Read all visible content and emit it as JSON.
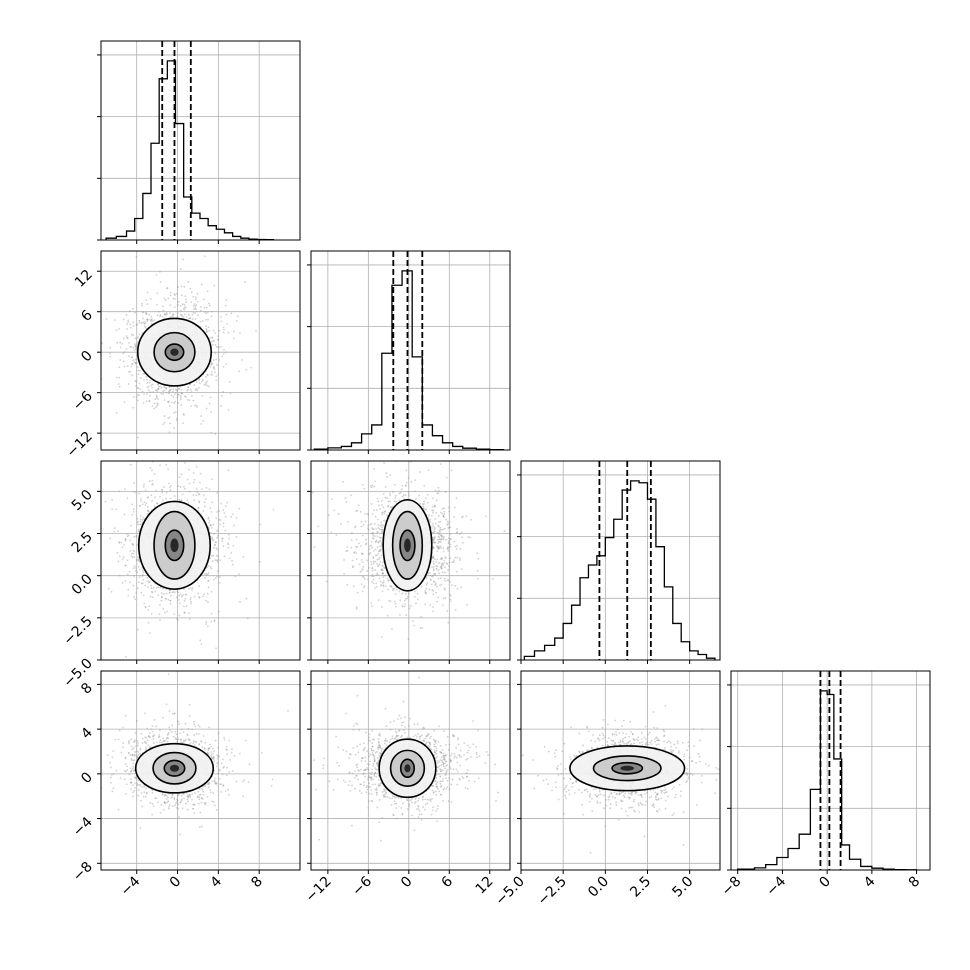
{
  "figure": {
    "type": "corner-plot",
    "n_parameters": 4
  },
  "axes": {
    "p0": {
      "ticks": [
        -4,
        0,
        4,
        8
      ],
      "tick_labels": [
        "−4",
        "0",
        "4",
        "8"
      ],
      "range": [
        -7.5,
        12
      ]
    },
    "p1": {
      "ticks": [
        -12,
        -6,
        0,
        6,
        12
      ],
      "tick_labels": [
        "−12",
        "−6",
        "0",
        "6",
        "12"
      ],
      "range": [
        -14.5,
        15
      ]
    },
    "p2": {
      "ticks": [
        -5.0,
        -2.5,
        0.0,
        2.5,
        5.0
      ],
      "tick_labels": [
        "−5.0",
        "−2.5",
        "0.0",
        "2.5",
        "5.0"
      ],
      "range": [
        -5.0,
        6.8
      ]
    },
    "p3": {
      "ticks": [
        -8,
        -4,
        0,
        4,
        8
      ],
      "tick_labels": [
        "−8",
        "−4",
        "0",
        "4",
        "8"
      ],
      "range": [
        -8.6,
        9.2
      ]
    }
  },
  "colors": {
    "line": "#000000",
    "grid": "#b0b0b0",
    "scatter": "#9a9a9a"
  },
  "chart_data": {
    "type": "corner",
    "grid": true,
    "histograms": [
      {
        "parameter": "p0",
        "quantiles": [
          -1.5,
          -0.3,
          1.3
        ],
        "bin_edges": [
          -7.0,
          -6.0,
          -5.0,
          -4.2,
          -3.4,
          -2.6,
          -1.8,
          -1.0,
          -0.2,
          0.6,
          1.4,
          2.2,
          3.0,
          3.8,
          4.6,
          5.4,
          6.2,
          7.0,
          7.8,
          8.6,
          9.4
        ],
        "counts": [
          0.01,
          0.02,
          0.05,
          0.12,
          0.26,
          0.54,
          0.9,
          1.0,
          0.65,
          0.24,
          0.15,
          0.12,
          0.08,
          0.06,
          0.04,
          0.02,
          0.01,
          0.005,
          0.003,
          0.002
        ]
      },
      {
        "parameter": "p1",
        "quantiles": [
          -2.3,
          -0.2,
          2.0
        ],
        "bin_edges": [
          -14.0,
          -12.0,
          -10.0,
          -8.5,
          -7.0,
          -5.5,
          -4.0,
          -2.5,
          -1.0,
          0.5,
          2.0,
          3.5,
          5.0,
          6.5,
          8.0,
          10.0,
          12.0,
          14.0
        ],
        "counts": [
          0.005,
          0.012,
          0.02,
          0.04,
          0.09,
          0.14,
          0.54,
          0.92,
          1.0,
          0.52,
          0.14,
          0.08,
          0.04,
          0.02,
          0.01,
          0.005,
          0.002
        ]
      },
      {
        "parameter": "p2",
        "quantiles": [
          -0.35,
          1.3,
          2.7
        ],
        "bin_edges": [
          -4.8,
          -4.2,
          -3.6,
          -3.0,
          -2.5,
          -2.0,
          -1.5,
          -1.0,
          -0.5,
          0.0,
          0.5,
          1.0,
          1.5,
          2.0,
          2.5,
          3.0,
          3.5,
          4.0,
          4.5,
          5.0,
          5.5,
          6.0,
          6.5
        ],
        "counts": [
          0.02,
          0.05,
          0.08,
          0.12,
          0.2,
          0.3,
          0.45,
          0.52,
          0.57,
          0.67,
          0.77,
          0.93,
          0.98,
          0.97,
          0.88,
          0.62,
          0.4,
          0.2,
          0.1,
          0.05,
          0.03,
          0.01
        ]
      },
      {
        "parameter": "p3",
        "quantiles": [
          -0.6,
          0.2,
          1.2
        ],
        "bin_edges": [
          -8.0,
          -6.5,
          -5.5,
          -4.5,
          -3.5,
          -2.5,
          -1.5,
          -0.6,
          0.0,
          0.6,
          1.3,
          2.0,
          3.0,
          4.0,
          5.0,
          6.0,
          7.0,
          8.0
        ],
        "counts": [
          0.005,
          0.012,
          0.03,
          0.07,
          0.12,
          0.2,
          0.45,
          1.0,
          0.98,
          0.62,
          0.14,
          0.06,
          0.02,
          0.01,
          0.005,
          0.002,
          0.001
        ]
      }
    ],
    "pairs": [
      {
        "x": "p0",
        "y": "p1",
        "center": [
          -0.3,
          0.0
        ],
        "sigma": [
          2.2,
          3.6
        ],
        "contour_levels": [
          [
            0.9,
            1.2
          ],
          [
            2.0,
            2.9
          ],
          [
            3.6,
            5.0
          ]
        ]
      },
      {
        "x": "p0",
        "y": "p2",
        "center": [
          -0.3,
          1.8
        ],
        "sigma": [
          2.2,
          1.6
        ],
        "contour_levels": [
          [
            0.9,
            0.9
          ],
          [
            2.0,
            2.0
          ],
          [
            3.5,
            2.6
          ]
        ]
      },
      {
        "x": "p1",
        "y": "p2",
        "center": [
          -0.2,
          1.8
        ],
        "sigma": [
          3.4,
          1.6
        ],
        "contour_levels": [
          [
            1.1,
            0.9
          ],
          [
            2.2,
            2.0
          ],
          [
            3.6,
            2.7
          ]
        ]
      },
      {
        "x": "p0",
        "y": "p3",
        "center": [
          -0.3,
          0.5
        ],
        "sigma": [
          2.2,
          1.5
        ],
        "contour_levels": [
          [
            1.0,
            0.7
          ],
          [
            2.1,
            1.4
          ],
          [
            3.8,
            2.2
          ]
        ]
      },
      {
        "x": "p1",
        "y": "p3",
        "center": [
          -0.2,
          0.5
        ],
        "sigma": [
          3.4,
          1.5
        ],
        "contour_levels": [
          [
            1.0,
            0.8
          ],
          [
            2.5,
            1.6
          ],
          [
            4.2,
            2.6
          ]
        ]
      },
      {
        "x": "p2",
        "y": "p3",
        "center": [
          1.3,
          0.5
        ],
        "sigma": [
          1.6,
          1.4
        ],
        "contour_levels": [
          [
            0.9,
            0.5
          ],
          [
            2.0,
            1.1
          ],
          [
            3.4,
            2.0
          ]
        ]
      }
    ]
  }
}
